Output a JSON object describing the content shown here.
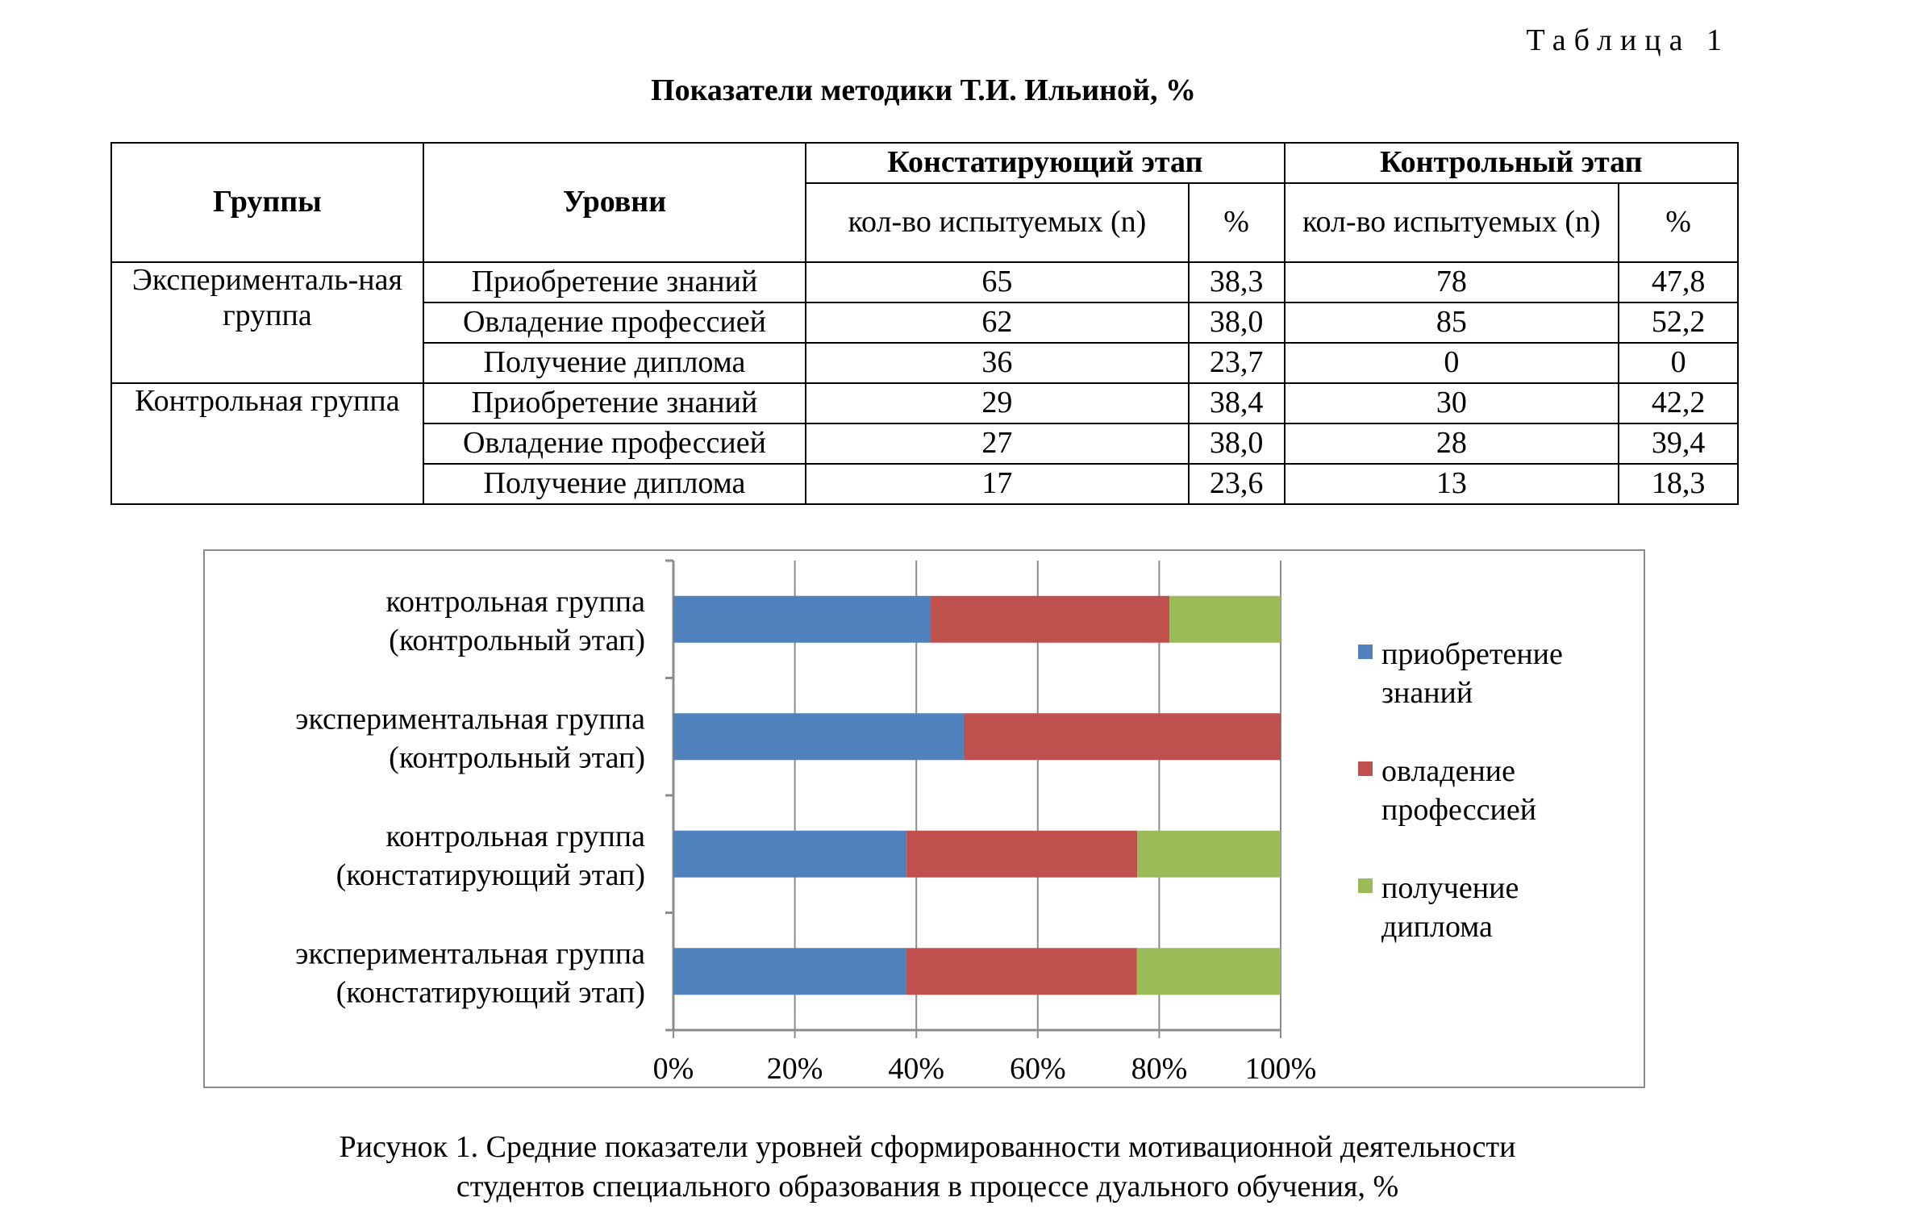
{
  "table_label": "Таблица 1",
  "table_title": "Показатели методики Т.И. Ильиной, %",
  "table": {
    "headers": {
      "groups": "Группы",
      "levels": "Уровни",
      "stage1": "Констатирующий этап",
      "stage2": "Контрольный этап",
      "n1": "кол-во испытуемых (n)",
      "p1": "%",
      "n2": "кол-во испытуемых (n)",
      "p2": "%"
    },
    "groups": [
      {
        "name": "Эксперименталь-ная группа",
        "rows": [
          {
            "level": "Приобретение знаний",
            "n1": "65",
            "p1": "38,3",
            "n2": "78",
            "p2": "47,8"
          },
          {
            "level": "Овладение профессией",
            "n1": "62",
            "p1": "38,0",
            "n2": "85",
            "p2": "52,2"
          },
          {
            "level": "Получение диплома",
            "n1": "36",
            "p1": "23,7",
            "n2": "0",
            "p2": "0"
          }
        ]
      },
      {
        "name": "Контрольная группа",
        "rows": [
          {
            "level": "Приобретение знаний",
            "n1": "29",
            "p1": "38,4",
            "n2": "30",
            "p2": "42,2"
          },
          {
            "level": "Овладение профессией",
            "n1": "27",
            "p1": "38,0",
            "n2": "28",
            "p2": "39,4"
          },
          {
            "level": "Получение диплома",
            "n1": "17",
            "p1": "23,6",
            "n2": "13",
            "p2": "18,3"
          }
        ]
      }
    ]
  },
  "chart_data": {
    "type": "bar",
    "orientation": "horizontal",
    "stacked": "100%",
    "categories": [
      [
        "контрольная группа",
        "(контрольный этап)"
      ],
      [
        "экспериментальная группа",
        "(контрольный этап)"
      ],
      [
        "контрольная группа",
        "(констатирующий этап)"
      ],
      [
        "экспериментальная группа",
        "(констатирующий этап)"
      ]
    ],
    "series": [
      {
        "name": [
          "приобретение",
          "знаний"
        ],
        "color": "#4f81bd",
        "values": [
          42.2,
          47.8,
          38.4,
          38.3
        ]
      },
      {
        "name": [
          "овладение",
          "профессией"
        ],
        "color": "#c0504d",
        "values": [
          39.4,
          52.2,
          38.0,
          38.0
        ]
      },
      {
        "name": [
          "получение",
          "диплома"
        ],
        "color": "#9bbb59",
        "values": [
          18.3,
          0,
          23.6,
          23.7
        ]
      }
    ],
    "xlim": [
      0,
      100
    ],
    "xticks": [
      "0%",
      "20%",
      "40%",
      "60%",
      "80%",
      "100%"
    ],
    "grid": true,
    "legend": "right"
  },
  "caption": [
    "Рисунок 1. Средние показатели уровней сформированности мотивационной деятельности",
    "студентов специального образования в процессе дуального обучения, %"
  ]
}
